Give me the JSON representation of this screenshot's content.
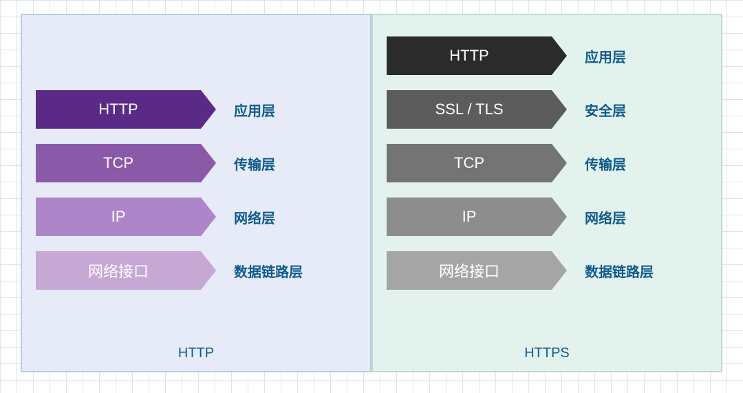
{
  "diagram": {
    "type": "infographic",
    "background_color": "#ffffff",
    "grid_color": "#e0e4e8",
    "label_color": "#0f5a8c",
    "title_color": "#0f5a8c",
    "label_fontsize": 20,
    "arrow_fontsize": 22,
    "title_fontsize": 20,
    "arrow_text_color": "#ffffff",
    "arrow_body_width": 240,
    "arrow_height": 56,
    "arrow_head_width": 22
  },
  "left_panel": {
    "title": "HTTP",
    "bg_color": "#e6ebf7",
    "border_color": "#b9cce6",
    "layers": [
      {
        "protocol": "HTTP",
        "label": "应用层",
        "color": "#5b2a86"
      },
      {
        "protocol": "TCP",
        "label": "传输层",
        "color": "#8a5aa9"
      },
      {
        "protocol": "IP",
        "label": "网络层",
        "color": "#ad86c9"
      },
      {
        "protocol": "网络接口",
        "label": "数据链路层",
        "color": "#c7a7d4"
      }
    ]
  },
  "right_panel": {
    "title": "HTTPS",
    "bg_color": "#e3f2ed",
    "border_color": "#b9dcd0",
    "layers": [
      {
        "protocol": "HTTP",
        "label": "应用层",
        "color": "#2b2b2b"
      },
      {
        "protocol": "SSL / TLS",
        "label": "安全层",
        "color": "#5c5c5c"
      },
      {
        "protocol": "TCP",
        "label": "传输层",
        "color": "#747474"
      },
      {
        "protocol": "IP",
        "label": "网络层",
        "color": "#8d8d8d"
      },
      {
        "protocol": "网络接口",
        "label": "数据链路层",
        "color": "#a5a5a5"
      }
    ]
  }
}
